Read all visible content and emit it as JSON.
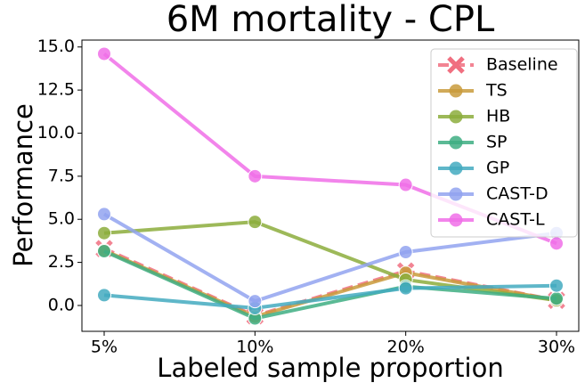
{
  "chart_data": {
    "type": "line",
    "title": "6M mortality - CPL",
    "xlabel": "Labeled sample proportion",
    "ylabel": "Performance",
    "categories": [
      "5%",
      "10%",
      "20%",
      "30%"
    ],
    "series": [
      {
        "name": "Baseline",
        "color": "#f06f80",
        "linestyle": "dashed",
        "marker": "x",
        "values": [
          3.3,
          -0.6,
          2.0,
          0.3
        ]
      },
      {
        "name": "TS",
        "color": "#c99b3c",
        "linestyle": "solid",
        "marker": "o",
        "values": [
          3.2,
          -0.65,
          1.9,
          0.3
        ]
      },
      {
        "name": "HB",
        "color": "#8cad3c",
        "linestyle": "solid",
        "marker": "o",
        "values": [
          4.2,
          4.85,
          1.5,
          0.3
        ]
      },
      {
        "name": "SP",
        "color": "#3eae82",
        "linestyle": "solid",
        "marker": "o",
        "values": [
          3.15,
          -0.75,
          1.1,
          0.4
        ]
      },
      {
        "name": "GP",
        "color": "#43aabf",
        "linestyle": "solid",
        "marker": "o",
        "values": [
          0.6,
          -0.15,
          1.0,
          1.15
        ]
      },
      {
        "name": "CAST-D",
        "color": "#92a3f0",
        "linestyle": "solid",
        "marker": "o",
        "values": [
          5.3,
          0.25,
          3.1,
          4.2
        ]
      },
      {
        "name": "CAST-L",
        "color": "#f06ee8",
        "linestyle": "solid",
        "marker": "o",
        "values": [
          14.6,
          7.5,
          7.0,
          3.6
        ]
      }
    ],
    "ylim": [
      -1.5,
      15.4
    ],
    "yticks": [
      {
        "value": 0,
        "label": "0.0"
      },
      2.5,
      {
        "value": 5,
        "label": "5.0"
      },
      7.5,
      {
        "value": 10,
        "label": "10.0"
      },
      12.5,
      {
        "value": 15,
        "label": "15.0"
      }
    ],
    "legend": "upper right"
  }
}
